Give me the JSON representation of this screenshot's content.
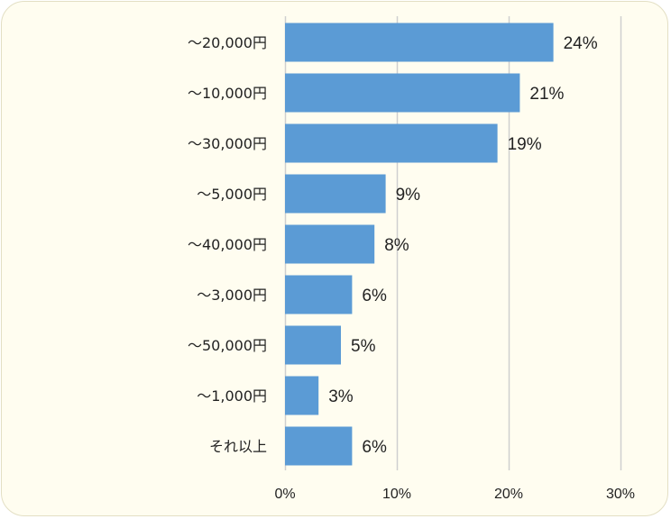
{
  "chart_data": {
    "type": "bar",
    "orientation": "horizontal",
    "categories": [
      "〜20,000円",
      "〜10,000円",
      "〜30,000円",
      "〜5,000円",
      "〜40,000円",
      "〜3,000円",
      "〜50,000円",
      "〜1,000円",
      "それ以上"
    ],
    "values": [
      24,
      21,
      19,
      9,
      8,
      6,
      5,
      3,
      6
    ],
    "value_labels": [
      "24%",
      "21%",
      "19%",
      "9%",
      "8%",
      "6%",
      "5%",
      "3%",
      "6%"
    ],
    "xlim": [
      0,
      30
    ],
    "xticks": [
      0,
      10,
      20,
      30
    ],
    "xtick_labels": [
      "0%",
      "10%",
      "20%",
      "30%"
    ],
    "grid": true,
    "title": "",
    "xlabel": "",
    "ylabel": "",
    "colors": {
      "bar": "#5b9bd5",
      "grid": "#cfcfcf",
      "background": "#fffdf0",
      "border": "#e3dfc4",
      "text": "#222222"
    }
  }
}
